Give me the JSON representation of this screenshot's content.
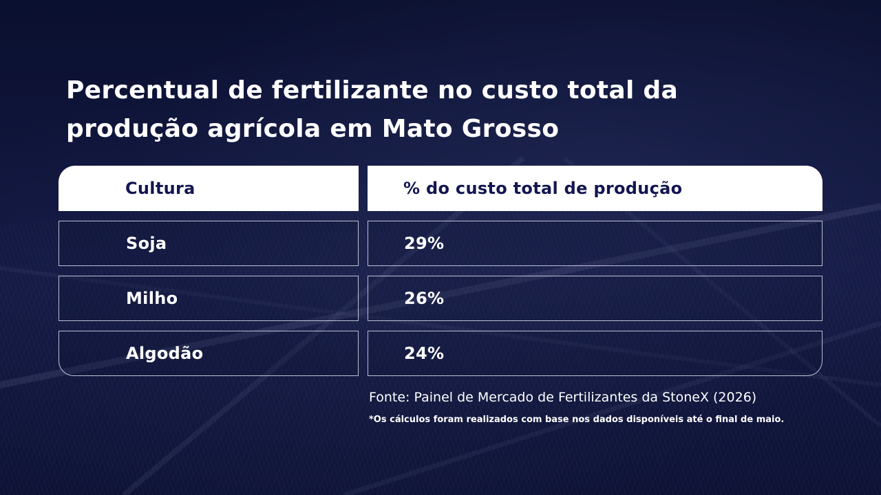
{
  "title": {
    "line1": "Percentual de fertilizante no custo total da",
    "line2": "produção agrícola em Mato Grosso"
  },
  "chart_data": {
    "type": "table",
    "title": "Percentual de fertilizante no custo total da produção agrícola em Mato Grosso",
    "columns": [
      "Cultura",
      "% do custo total de produção"
    ],
    "rows": [
      {
        "cultura": "Soja",
        "percentual_label": "29%",
        "percentual": 29
      },
      {
        "cultura": "Milho",
        "percentual_label": "26%",
        "percentual": 26
      },
      {
        "cultura": "Algodão",
        "percentual_label": "24%",
        "percentual": 24
      }
    ]
  },
  "footer": {
    "source": "Fonte: Painel de Mercado de Fertilizantes da StoneX (2026)",
    "note": "*Os cálculos foram realizados com base nos dados disponíveis até o final de maio."
  },
  "colors": {
    "background": "#0d1233",
    "header_bg": "#ffffff",
    "header_text": "#131651",
    "body_text": "#ffffff"
  }
}
